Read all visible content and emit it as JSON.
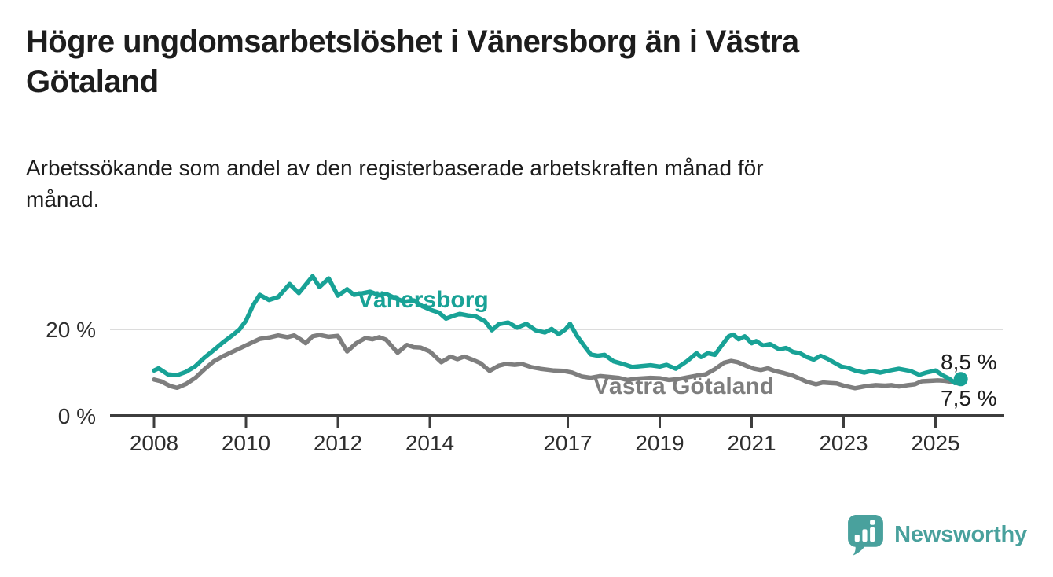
{
  "header": {
    "title_lines": [
      "Högre ungdomsarbetslöshet i Vänersborg än i Västra",
      "Götaland"
    ],
    "subtitle_lines": [
      "Arbetssökande som andel av den registerbaserade arbetskraften månad för",
      "månad."
    ]
  },
  "footer": {
    "brand": "Newsworthy"
  },
  "colors": {
    "accent_teal": "#18a296",
    "series_gray": "#7e7e7e",
    "brand_teal": "#49a19d",
    "text_dark": "#1d1d1d",
    "axis_text": "#2e2e2e",
    "axis_line": "#3d3d3d",
    "gridline": "#dcdcdc",
    "background": "#ffffff"
  },
  "chart_data": {
    "type": "line",
    "title": "Högre ungdomsarbetslöshet i Vänersborg än i Västra Götaland",
    "subtitle": "Arbetssökande som andel av den registerbaserade arbetskraften månad för månad.",
    "xlabel": "",
    "ylabel": "%",
    "xlim": [
      2007.0,
      2026.7
    ],
    "ylim": [
      0,
      34
    ],
    "grid": "horizontal-20-only",
    "legend_position": "inline-labels",
    "x_ticks": [
      {
        "value": 2008,
        "label": "2008"
      },
      {
        "value": 2010,
        "label": "2010"
      },
      {
        "value": 2012,
        "label": "2012"
      },
      {
        "value": 2014,
        "label": "2014"
      },
      {
        "value": 2017,
        "label": "2017"
      },
      {
        "value": 2019,
        "label": "2019"
      },
      {
        "value": 2021,
        "label": "2021"
      },
      {
        "value": 2023,
        "label": "2023"
      },
      {
        "value": 2025,
        "label": "2025"
      }
    ],
    "y_ticks": [
      {
        "value": 0,
        "label": "0 %"
      },
      {
        "value": 20,
        "label": "20 %"
      }
    ],
    "y_gridlines": [
      20
    ],
    "series": [
      {
        "name": "Västra Götaland",
        "color": "#7e7e7e",
        "end_label": "7,5 %",
        "end_dot": false,
        "points": [
          [
            2008.0,
            8.4
          ],
          [
            2008.15,
            8.0
          ],
          [
            2008.35,
            6.9
          ],
          [
            2008.5,
            6.5
          ],
          [
            2008.7,
            7.4
          ],
          [
            2008.9,
            8.8
          ],
          [
            2009.1,
            10.8
          ],
          [
            2009.3,
            12.6
          ],
          [
            2009.5,
            13.8
          ],
          [
            2009.7,
            14.8
          ],
          [
            2009.9,
            15.8
          ],
          [
            2010.1,
            16.8
          ],
          [
            2010.3,
            17.8
          ],
          [
            2010.5,
            18.1
          ],
          [
            2010.7,
            18.6
          ],
          [
            2010.9,
            18.2
          ],
          [
            2011.05,
            18.6
          ],
          [
            2011.2,
            17.6
          ],
          [
            2011.3,
            16.8
          ],
          [
            2011.45,
            18.4
          ],
          [
            2011.6,
            18.7
          ],
          [
            2011.8,
            18.3
          ],
          [
            2012.0,
            18.5
          ],
          [
            2012.2,
            14.9
          ],
          [
            2012.4,
            16.8
          ],
          [
            2012.6,
            18.0
          ],
          [
            2012.75,
            17.7
          ],
          [
            2012.9,
            18.2
          ],
          [
            2013.05,
            17.6
          ],
          [
            2013.3,
            14.6
          ],
          [
            2013.5,
            16.4
          ],
          [
            2013.65,
            15.9
          ],
          [
            2013.8,
            15.8
          ],
          [
            2014.0,
            14.9
          ],
          [
            2014.25,
            12.4
          ],
          [
            2014.45,
            13.7
          ],
          [
            2014.6,
            13.1
          ],
          [
            2014.75,
            13.7
          ],
          [
            2014.95,
            12.9
          ],
          [
            2015.1,
            12.2
          ],
          [
            2015.3,
            10.4
          ],
          [
            2015.5,
            11.6
          ],
          [
            2015.65,
            12.0
          ],
          [
            2015.85,
            11.8
          ],
          [
            2016.0,
            12.0
          ],
          [
            2016.2,
            11.3
          ],
          [
            2016.4,
            10.9
          ],
          [
            2016.7,
            10.5
          ],
          [
            2016.9,
            10.4
          ],
          [
            2017.1,
            10.0
          ],
          [
            2017.3,
            9.1
          ],
          [
            2017.5,
            8.8
          ],
          [
            2017.7,
            9.2
          ],
          [
            2017.9,
            9.0
          ],
          [
            2018.1,
            8.8
          ],
          [
            2018.3,
            8.3
          ],
          [
            2018.5,
            8.6
          ],
          [
            2018.8,
            8.8
          ],
          [
            2019.0,
            8.7
          ],
          [
            2019.2,
            8.3
          ],
          [
            2019.4,
            8.5
          ],
          [
            2019.6,
            8.9
          ],
          [
            2019.8,
            9.3
          ],
          [
            2020.0,
            9.6
          ],
          [
            2020.2,
            10.8
          ],
          [
            2020.4,
            12.3
          ],
          [
            2020.55,
            12.7
          ],
          [
            2020.7,
            12.4
          ],
          [
            2020.9,
            11.5
          ],
          [
            2021.05,
            10.9
          ],
          [
            2021.2,
            10.6
          ],
          [
            2021.35,
            11.0
          ],
          [
            2021.5,
            10.4
          ],
          [
            2021.7,
            9.9
          ],
          [
            2021.9,
            9.3
          ],
          [
            2022.05,
            8.6
          ],
          [
            2022.2,
            7.9
          ],
          [
            2022.4,
            7.3
          ],
          [
            2022.55,
            7.7
          ],
          [
            2022.7,
            7.6
          ],
          [
            2022.85,
            7.5
          ],
          [
            2023.0,
            7.0
          ],
          [
            2023.25,
            6.4
          ],
          [
            2023.5,
            6.9
          ],
          [
            2023.7,
            7.1
          ],
          [
            2023.9,
            7.0
          ],
          [
            2024.05,
            7.1
          ],
          [
            2024.2,
            6.8
          ],
          [
            2024.4,
            7.1
          ],
          [
            2024.55,
            7.3
          ],
          [
            2024.7,
            8.0
          ],
          [
            2024.9,
            8.1
          ],
          [
            2025.05,
            8.2
          ],
          [
            2025.2,
            8.1
          ],
          [
            2025.35,
            7.9
          ],
          [
            2025.5,
            7.5
          ]
        ]
      },
      {
        "name": "Vänersborg",
        "color": "#18a296",
        "end_label": "8,5 %",
        "end_dot": true,
        "points": [
          [
            2008.0,
            10.5
          ],
          [
            2008.1,
            11.0
          ],
          [
            2008.3,
            9.6
          ],
          [
            2008.5,
            9.4
          ],
          [
            2008.7,
            10.2
          ],
          [
            2008.9,
            11.5
          ],
          [
            2009.1,
            13.5
          ],
          [
            2009.3,
            15.2
          ],
          [
            2009.5,
            17.0
          ],
          [
            2009.7,
            18.6
          ],
          [
            2009.86,
            20.0
          ],
          [
            2010.0,
            22.0
          ],
          [
            2010.15,
            25.5
          ],
          [
            2010.3,
            28.0
          ],
          [
            2010.5,
            26.8
          ],
          [
            2010.7,
            27.5
          ],
          [
            2010.95,
            30.5
          ],
          [
            2011.15,
            28.4
          ],
          [
            2011.45,
            32.3
          ],
          [
            2011.6,
            29.8
          ],
          [
            2011.8,
            31.8
          ],
          [
            2012.0,
            27.8
          ],
          [
            2012.2,
            29.3
          ],
          [
            2012.35,
            28.0
          ],
          [
            2012.5,
            28.3
          ],
          [
            2012.7,
            28.7
          ],
          [
            2012.9,
            27.9
          ],
          [
            2013.05,
            28.2
          ],
          [
            2013.25,
            27.2
          ],
          [
            2013.45,
            26.4
          ],
          [
            2013.65,
            26.7
          ],
          [
            2013.85,
            25.3
          ],
          [
            2014.05,
            24.4
          ],
          [
            2014.2,
            23.9
          ],
          [
            2014.35,
            22.5
          ],
          [
            2014.5,
            23.1
          ],
          [
            2014.65,
            23.6
          ],
          [
            2014.85,
            23.2
          ],
          [
            2015.0,
            23.0
          ],
          [
            2015.2,
            21.9
          ],
          [
            2015.35,
            19.8
          ],
          [
            2015.5,
            21.2
          ],
          [
            2015.7,
            21.6
          ],
          [
            2015.9,
            20.4
          ],
          [
            2016.1,
            21.3
          ],
          [
            2016.3,
            19.8
          ],
          [
            2016.5,
            19.3
          ],
          [
            2016.65,
            20.1
          ],
          [
            2016.8,
            18.9
          ],
          [
            2016.95,
            20.0
          ],
          [
            2017.05,
            21.3
          ],
          [
            2017.2,
            18.5
          ],
          [
            2017.35,
            16.3
          ],
          [
            2017.5,
            14.2
          ],
          [
            2017.65,
            13.9
          ],
          [
            2017.8,
            14.1
          ],
          [
            2018.0,
            12.6
          ],
          [
            2018.2,
            12.0
          ],
          [
            2018.4,
            11.3
          ],
          [
            2018.6,
            11.5
          ],
          [
            2018.8,
            11.7
          ],
          [
            2019.0,
            11.4
          ],
          [
            2019.15,
            11.8
          ],
          [
            2019.35,
            10.9
          ],
          [
            2019.6,
            12.7
          ],
          [
            2019.8,
            14.5
          ],
          [
            2019.9,
            13.6
          ],
          [
            2020.05,
            14.5
          ],
          [
            2020.2,
            14.1
          ],
          [
            2020.35,
            16.3
          ],
          [
            2020.5,
            18.4
          ],
          [
            2020.6,
            18.8
          ],
          [
            2020.72,
            17.7
          ],
          [
            2020.85,
            18.4
          ],
          [
            2021.0,
            16.8
          ],
          [
            2021.1,
            17.3
          ],
          [
            2021.25,
            16.3
          ],
          [
            2021.4,
            16.6
          ],
          [
            2021.6,
            15.4
          ],
          [
            2021.75,
            15.7
          ],
          [
            2021.9,
            14.8
          ],
          [
            2022.05,
            14.5
          ],
          [
            2022.2,
            13.6
          ],
          [
            2022.35,
            13.0
          ],
          [
            2022.5,
            13.9
          ],
          [
            2022.65,
            13.2
          ],
          [
            2022.8,
            12.3
          ],
          [
            2022.95,
            11.4
          ],
          [
            2023.1,
            11.1
          ],
          [
            2023.25,
            10.5
          ],
          [
            2023.45,
            10.0
          ],
          [
            2023.6,
            10.4
          ],
          [
            2023.8,
            10.0
          ],
          [
            2024.0,
            10.5
          ],
          [
            2024.2,
            10.9
          ],
          [
            2024.45,
            10.4
          ],
          [
            2024.65,
            9.5
          ],
          [
            2024.8,
            10.0
          ],
          [
            2025.0,
            10.5
          ],
          [
            2025.15,
            9.4
          ],
          [
            2025.3,
            8.6
          ],
          [
            2025.42,
            7.6
          ],
          [
            2025.55,
            8.5
          ]
        ]
      }
    ]
  }
}
